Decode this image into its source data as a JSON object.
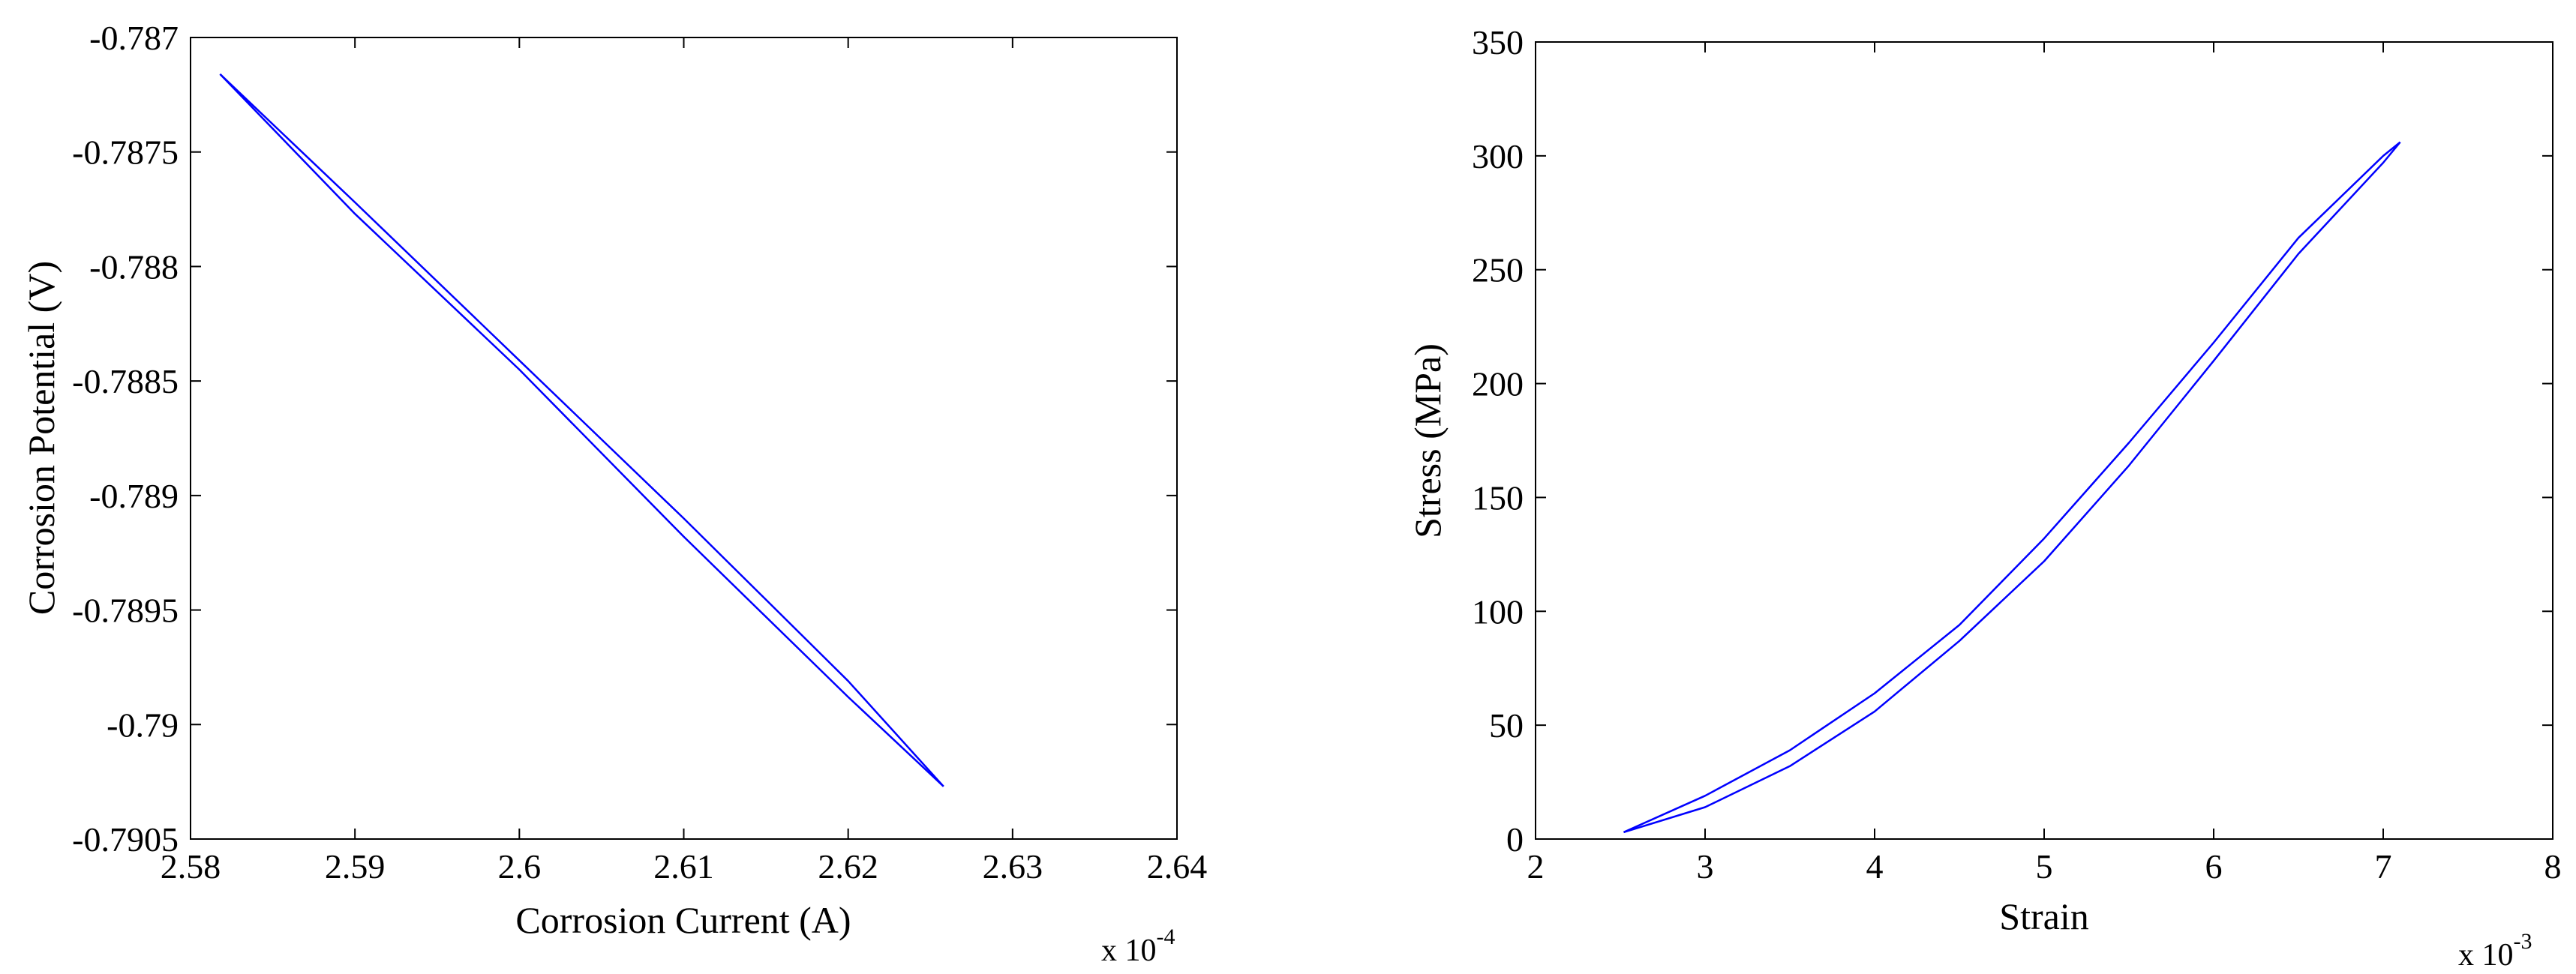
{
  "chart_data": [
    {
      "type": "line",
      "title": "",
      "xlabel": "Corrosion Current (A)",
      "ylabel": "Corrosion Potential (V)",
      "x_multiplier": {
        "base": "x 10",
        "exponent": "-4"
      },
      "xlim": [
        2.58,
        2.64
      ],
      "ylim": [
        -0.7905,
        -0.787
      ],
      "xticks": [
        "2.58",
        "2.59",
        "2.6",
        "2.61",
        "2.62",
        "2.63",
        "2.64"
      ],
      "yticks": [
        "-0.787",
        "-0.7875",
        "-0.788",
        "-0.7885",
        "-0.789",
        "-0.7895",
        "-0.79",
        "-0.7905"
      ],
      "grid": false,
      "line_color": "#0000ff",
      "series": [
        {
          "x": [
            2.5818,
            2.59,
            2.6,
            2.61,
            2.62,
            2.6258
          ],
          "y": [
            -0.78716,
            -0.78777,
            -0.78845,
            -0.78918,
            -0.78988,
            -0.79027
          ]
        },
        {
          "x": [
            2.6258,
            2.62,
            2.61,
            2.6,
            2.59,
            2.5818
          ],
          "y": [
            -0.79027,
            -0.78981,
            -0.7891,
            -0.78841,
            -0.78772,
            -0.78716
          ]
        }
      ]
    },
    {
      "type": "line",
      "title": "",
      "xlabel": "Strain",
      "ylabel": "Stress (MPa)",
      "x_multiplier": {
        "base": "x 10",
        "exponent": "-3"
      },
      "xlim": [
        2,
        8
      ],
      "ylim": [
        0,
        350
      ],
      "xticks": [
        "2",
        "3",
        "4",
        "5",
        "6",
        "7",
        "8"
      ],
      "yticks": [
        "0",
        "50",
        "100",
        "150",
        "200",
        "250",
        "300",
        "350"
      ],
      "grid": false,
      "line_color": "#0000ff",
      "series": [
        {
          "x": [
            2.52,
            3.0,
            3.5,
            4.0,
            4.5,
            5.0,
            5.5,
            6.0,
            6.5,
            7.0,
            7.1
          ],
          "y": [
            3,
            14,
            32,
            56,
            87,
            122,
            164,
            210,
            257,
            297,
            306
          ]
        },
        {
          "x": [
            7.1,
            7.0,
            6.5,
            6.0,
            5.5,
            5.0,
            4.5,
            4.0,
            3.5,
            3.0,
            2.52
          ],
          "y": [
            306,
            300,
            264,
            218,
            174,
            132,
            94,
            64,
            39,
            19,
            3
          ]
        }
      ]
    }
  ]
}
